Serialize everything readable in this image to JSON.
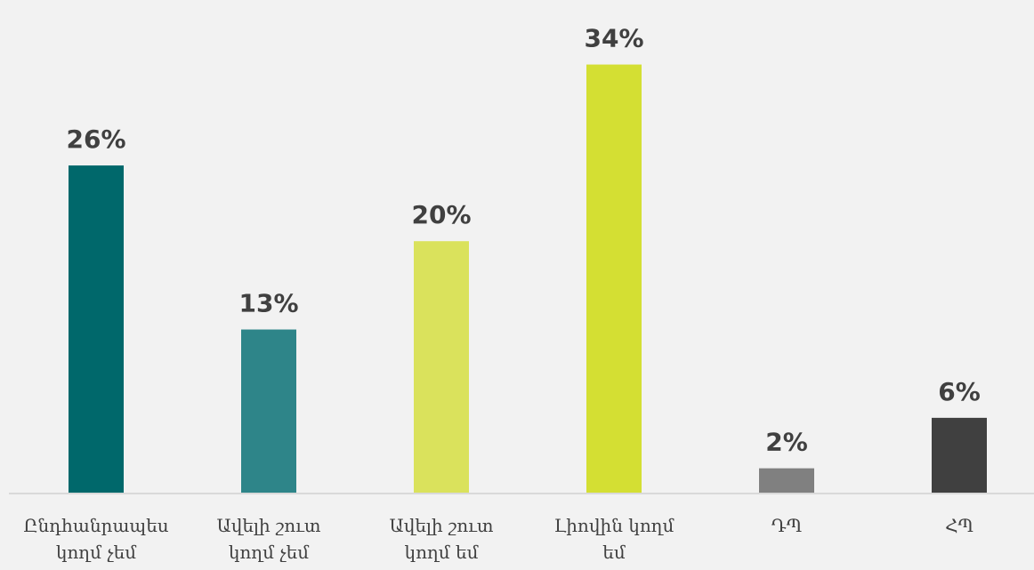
{
  "chart_data": {
    "type": "bar",
    "categories": [
      [
        "Ընդհանրապես",
        "կողմ չեմ"
      ],
      [
        "Ավելի շուտ",
        "կողմ չեմ"
      ],
      [
        "Ավելի շուտ",
        "կողմ եմ"
      ],
      [
        "Լիովին կողմ",
        "եմ"
      ],
      [
        "ԴՊ"
      ],
      [
        "ՀՊ"
      ]
    ],
    "values": [
      26,
      13,
      20,
      34,
      2,
      6
    ],
    "value_labels": [
      "26%",
      "13%",
      "20%",
      "34%",
      "2%",
      "6%"
    ],
    "colors": [
      "#00686b",
      "#2e8589",
      "#dae25c",
      "#d4df33",
      "#808080",
      "#404040"
    ],
    "ylim": [
      0,
      37
    ],
    "grid": false,
    "legend": "none",
    "title": "",
    "xlabel": "",
    "ylabel": ""
  }
}
